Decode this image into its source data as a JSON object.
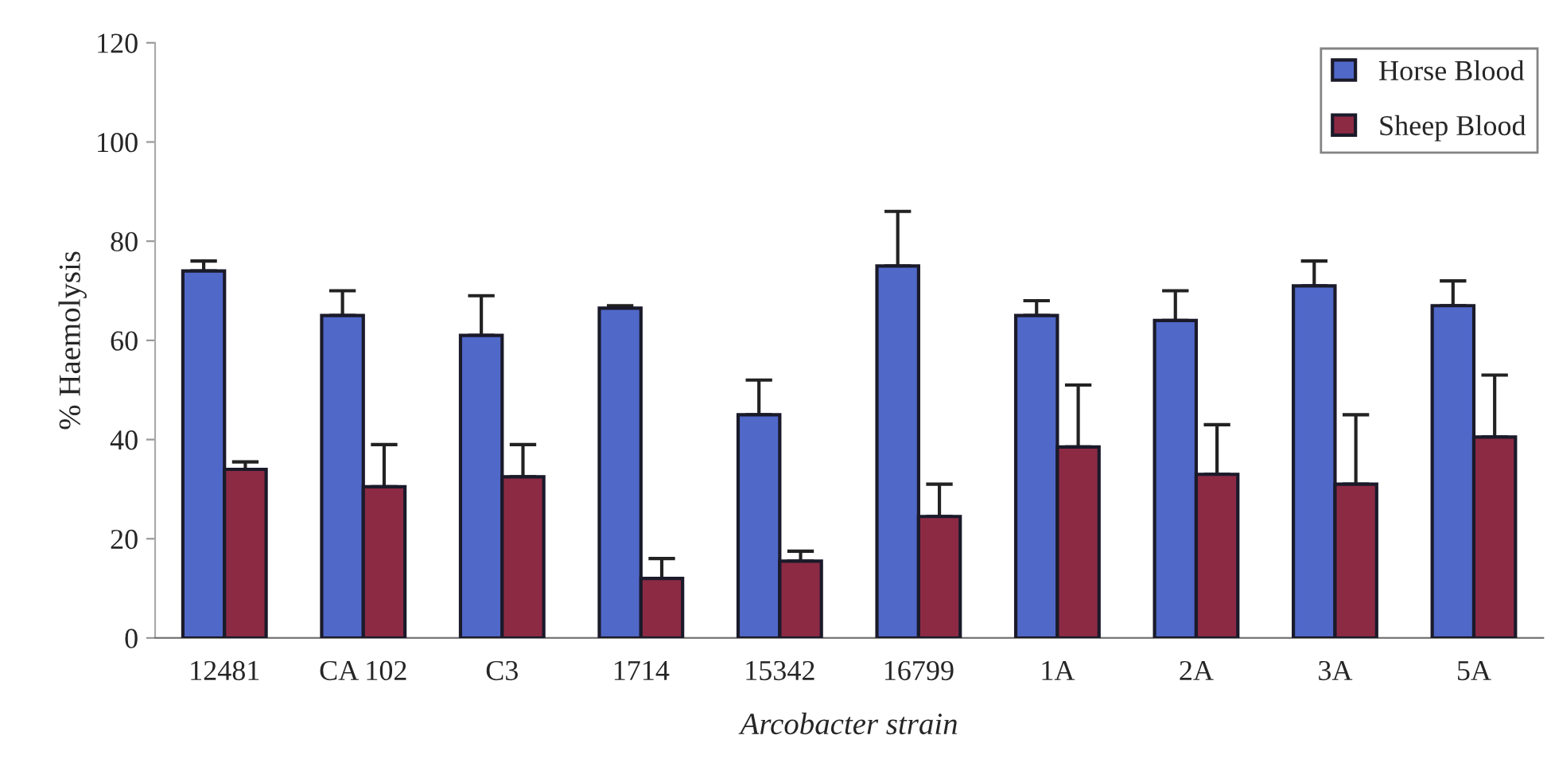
{
  "chart_data": {
    "type": "bar",
    "xlabel": "Arcobacter strain",
    "ylabel": "% Haemolysis",
    "categories": [
      "12481",
      "CA 102",
      "C3",
      "1714",
      "15342",
      "16799",
      "1A",
      "2A",
      "3A",
      "5A"
    ],
    "series": [
      {
        "name": "Horse Blood",
        "color": "#5068c8",
        "values": [
          74,
          65,
          61,
          66.5,
          45,
          75,
          65,
          64,
          71,
          67
        ],
        "errors": [
          2,
          5,
          8,
          0.5,
          7,
          11,
          3,
          6,
          5,
          5
        ]
      },
      {
        "name": "Sheep Blood",
        "color": "#8c2a44",
        "values": [
          34,
          30.5,
          32.5,
          12,
          15.5,
          24.5,
          38.5,
          33,
          31,
          40.5
        ],
        "errors": [
          1.5,
          8.5,
          6.5,
          4,
          2,
          6.5,
          12.5,
          10,
          14,
          12.5
        ]
      }
    ],
    "ylim": [
      0,
      120
    ],
    "yticks": [
      0,
      20,
      40,
      60,
      80,
      100,
      120
    ],
    "grid": false,
    "legend": "top right"
  }
}
